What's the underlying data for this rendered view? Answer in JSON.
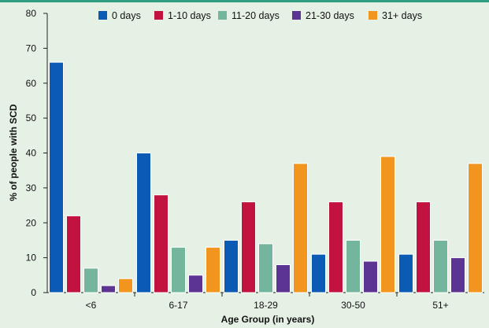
{
  "chart_data": {
    "type": "bar",
    "xlabel": "Age Group (in years)",
    "ylabel": "% of people with SCD",
    "ylim": [
      0,
      80
    ],
    "yticks": [
      0,
      10,
      20,
      30,
      40,
      50,
      60,
      70,
      80
    ],
    "categories": [
      "<6",
      "6-17",
      "18-29",
      "30-50",
      "51+"
    ],
    "legend_position": "top-center",
    "grid": false,
    "series": [
      {
        "name": "0 days",
        "color": "#0b5bb5",
        "values": [
          66,
          40,
          15,
          11,
          11
        ]
      },
      {
        "name": "1-10 days",
        "color": "#c2123f",
        "values": [
          22,
          28,
          26,
          26,
          26
        ]
      },
      {
        "name": "11-20 days",
        "color": "#74b59e",
        "values": [
          7,
          13,
          14,
          15,
          15
        ]
      },
      {
        "name": "21-30 days",
        "color": "#5b3494",
        "values": [
          2,
          5,
          8,
          9,
          10
        ]
      },
      {
        "name": "31+ days",
        "color": "#f2951f",
        "values": [
          4,
          13,
          37,
          39,
          37
        ]
      }
    ]
  }
}
